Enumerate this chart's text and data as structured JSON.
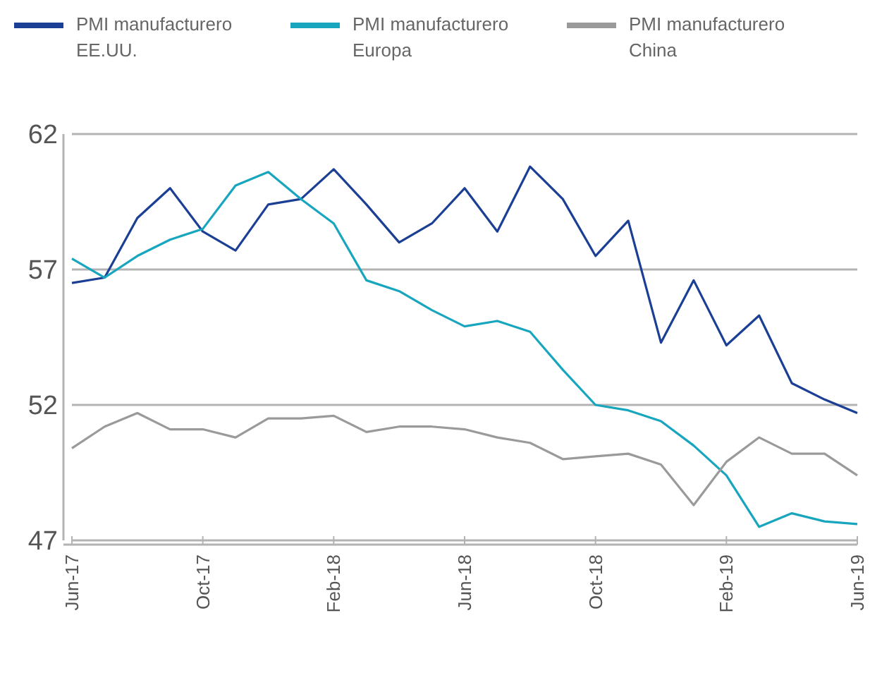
{
  "chart_data": {
    "type": "line",
    "categories": [
      "Jun-17",
      null,
      null,
      null,
      "Oct-17",
      null,
      null,
      null,
      "Feb-18",
      null,
      null,
      null,
      "Jun-18",
      null,
      null,
      null,
      "Oct-18",
      null,
      null,
      null,
      "Feb-19",
      null,
      null,
      null,
      "Jun-19"
    ],
    "series": [
      {
        "name": "PMI manufacturero EE.UU.",
        "color": "#1b3f94",
        "values": [
          56.5,
          56.7,
          58.9,
          60.0,
          58.4,
          57.7,
          59.4,
          59.6,
          60.7,
          59.4,
          58.0,
          58.7,
          60.0,
          58.4,
          60.8,
          59.6,
          57.5,
          58.8,
          54.3,
          56.6,
          54.2,
          55.3,
          52.8,
          52.2,
          51.7
        ]
      },
      {
        "name": "PMI manufacturero Europa",
        "color": "#17a6bd",
        "values": [
          57.4,
          56.7,
          57.5,
          58.1,
          58.5,
          60.1,
          60.6,
          59.6,
          58.7,
          56.6,
          56.2,
          55.5,
          54.9,
          55.1,
          54.7,
          53.3,
          52.0,
          51.8,
          51.4,
          50.5,
          49.4,
          47.5,
          48.0,
          47.7,
          47.6
        ]
      },
      {
        "name": "PMI manufacturero China",
        "color": "#9a9a9a",
        "values": [
          50.4,
          51.2,
          51.7,
          51.1,
          51.1,
          50.8,
          51.5,
          51.5,
          51.6,
          51.0,
          51.2,
          51.2,
          51.1,
          50.8,
          50.6,
          50.0,
          50.1,
          50.2,
          49.8,
          48.3,
          49.9,
          50.8,
          50.2,
          50.2,
          49.4
        ]
      }
    ],
    "ylim": [
      47,
      62
    ],
    "yticks": [
      47,
      52,
      57,
      62
    ],
    "grid": "y",
    "legend": "top",
    "line_style": "solid",
    "marker": "none"
  }
}
